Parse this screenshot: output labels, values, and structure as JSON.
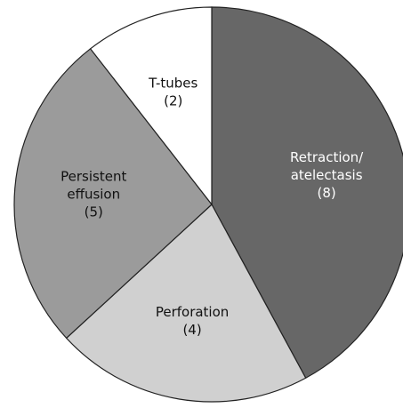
{
  "chart_data": {
    "type": "pie",
    "categories": [
      [
        "Retraction/",
        "atelectasis"
      ],
      [
        "Perforation"
      ],
      [
        "Persistent",
        "effusion"
      ],
      [
        "T-tubes"
      ]
    ],
    "values": [
      8,
      4,
      5,
      2
    ],
    "value_labels": [
      "(8)",
      "(4)",
      "(5)",
      "(2)"
    ],
    "colors": [
      "#676767",
      "#d0d0d0",
      "#9b9b9b",
      "#ffffff"
    ],
    "start_angle": 0,
    "direction": "clockwise"
  }
}
